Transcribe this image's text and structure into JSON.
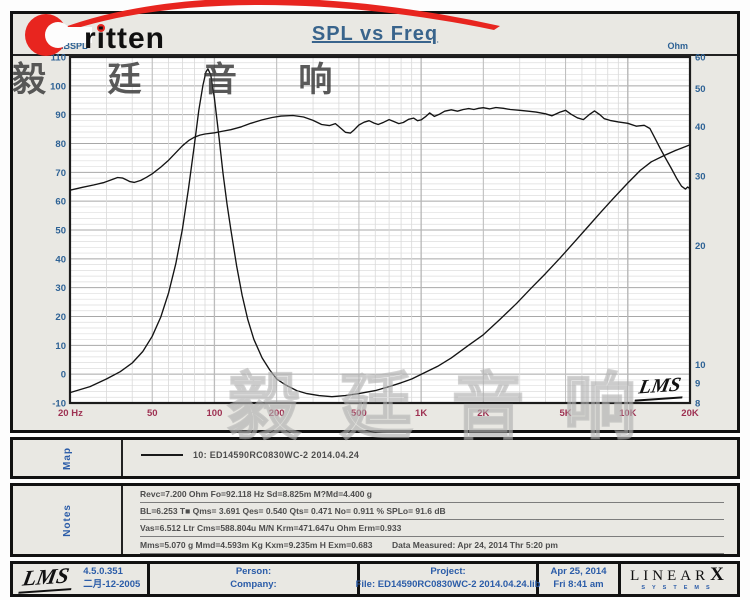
{
  "title": "SPL vs Freq",
  "logo": {
    "brand_text": "ritten"
  },
  "watermarks": {
    "top": "毅 廷 音 响",
    "bottom": "毅 廷 音 响"
  },
  "chart_data": {
    "type": "line",
    "title": "SPL vs Freq",
    "x_axis": {
      "scale": "log",
      "min": 20,
      "max": 20000,
      "tick_labels": [
        "20 Hz",
        "50",
        "100",
        "200",
        "500",
        "1K",
        "2K",
        "5K",
        "10K",
        "20K"
      ],
      "tick_values": [
        20,
        50,
        100,
        200,
        500,
        1000,
        2000,
        5000,
        10000,
        20000
      ]
    },
    "y_left": {
      "label": "dBSPL",
      "min": -10,
      "max": 110,
      "tick_step": 10,
      "scale": "linear"
    },
    "y_right": {
      "label": "Ohm",
      "min": 8,
      "max": 60,
      "scale": "log",
      "ticks": [
        60,
        50,
        40,
        30,
        20,
        10,
        9,
        8
      ]
    },
    "grid": {
      "h_minor_step_db": 2,
      "log_v_minors": true
    },
    "inplot_logo": "LMS",
    "series": [
      {
        "name": "SPL",
        "axis": "left",
        "color": "#141414",
        "points": [
          [
            20,
            63.8
          ],
          [
            23,
            64.8
          ],
          [
            26,
            65.6
          ],
          [
            29,
            66.4
          ],
          [
            32,
            67.5
          ],
          [
            34,
            68.2
          ],
          [
            36,
            68
          ],
          [
            39,
            66.8
          ],
          [
            41,
            66.5
          ],
          [
            44,
            67.2
          ],
          [
            47,
            68.3
          ],
          [
            50,
            69.5
          ],
          [
            55,
            71.8
          ],
          [
            60,
            74.2
          ],
          [
            65,
            76.8
          ],
          [
            70,
            79.2
          ],
          [
            75,
            81
          ],
          [
            80,
            82.2
          ],
          [
            85,
            82.9
          ],
          [
            90,
            83.3
          ],
          [
            100,
            83.7
          ],
          [
            110,
            84.3
          ],
          [
            120,
            84.8
          ],
          [
            135,
            85.8
          ],
          [
            150,
            87
          ],
          [
            170,
            88.2
          ],
          [
            190,
            89
          ],
          [
            210,
            89.5
          ],
          [
            240,
            89.7
          ],
          [
            270,
            89.2
          ],
          [
            300,
            88
          ],
          [
            330,
            86.6
          ],
          [
            360,
            86.2
          ],
          [
            385,
            86.9
          ],
          [
            410,
            85.2
          ],
          [
            430,
            83.9
          ],
          [
            455,
            83.6
          ],
          [
            475,
            84.8
          ],
          [
            500,
            86.4
          ],
          [
            530,
            87.4
          ],
          [
            560,
            87.9
          ],
          [
            590,
            87.1
          ],
          [
            620,
            86.6
          ],
          [
            660,
            87.4
          ],
          [
            700,
            88.3
          ],
          [
            740,
            87.6
          ],
          [
            780,
            86.9
          ],
          [
            820,
            87.3
          ],
          [
            870,
            88.4
          ],
          [
            920,
            88.8
          ],
          [
            960,
            87.9
          ],
          [
            1000,
            88.2
          ],
          [
            1050,
            89.3
          ],
          [
            1100,
            90.6
          ],
          [
            1160,
            89.4
          ],
          [
            1230,
            90.2
          ],
          [
            1300,
            91.2
          ],
          [
            1400,
            91.7
          ],
          [
            1500,
            91.2
          ],
          [
            1600,
            91.8
          ],
          [
            1700,
            92.1
          ],
          [
            1800,
            91.8
          ],
          [
            1900,
            92.2
          ],
          [
            2000,
            92.4
          ],
          [
            2150,
            92
          ],
          [
            2300,
            92.5
          ],
          [
            2500,
            92.2
          ],
          [
            2700,
            91.8
          ],
          [
            3000,
            91.5
          ],
          [
            3300,
            91.2
          ],
          [
            3600,
            90.9
          ],
          [
            4000,
            90.3
          ],
          [
            4300,
            89.6
          ],
          [
            4700,
            90.9
          ],
          [
            5000,
            91.5
          ],
          [
            5300,
            90.2
          ],
          [
            5700,
            88.9
          ],
          [
            6100,
            88.3
          ],
          [
            6500,
            90
          ],
          [
            6900,
            91.3
          ],
          [
            7300,
            90.1
          ],
          [
            7700,
            88.6
          ],
          [
            8200,
            88
          ],
          [
            9000,
            87.5
          ],
          [
            10000,
            87
          ],
          [
            11000,
            86
          ],
          [
            12000,
            86.3
          ],
          [
            12800,
            85.2
          ],
          [
            13500,
            82
          ],
          [
            14300,
            78.5
          ],
          [
            15200,
            75
          ],
          [
            16200,
            71.5
          ],
          [
            17200,
            68
          ],
          [
            18200,
            65.2
          ],
          [
            19000,
            64.2
          ],
          [
            19500,
            64.9
          ],
          [
            20000,
            64.3
          ]
        ]
      },
      {
        "name": "Impedance",
        "axis": "right",
        "color": "#141414",
        "points": [
          [
            20,
            8.5
          ],
          [
            25,
            8.8
          ],
          [
            30,
            9.2
          ],
          [
            35,
            9.6
          ],
          [
            40,
            10.1
          ],
          [
            45,
            10.8
          ],
          [
            50,
            11.8
          ],
          [
            55,
            13.2
          ],
          [
            60,
            15.2
          ],
          [
            65,
            18
          ],
          [
            70,
            22
          ],
          [
            75,
            28
          ],
          [
            80,
            36
          ],
          [
            84,
            44
          ],
          [
            88,
            51
          ],
          [
            91,
            55
          ],
          [
            93,
            56
          ],
          [
            96,
            54
          ],
          [
            100,
            47
          ],
          [
            105,
            38
          ],
          [
            110,
            30.5
          ],
          [
            115,
            25.5
          ],
          [
            120,
            22
          ],
          [
            128,
            17.8
          ],
          [
            136,
            15
          ],
          [
            145,
            13
          ],
          [
            155,
            11.6
          ],
          [
            170,
            10.4
          ],
          [
            185,
            9.7
          ],
          [
            200,
            9.2
          ],
          [
            220,
            8.9
          ],
          [
            250,
            8.6
          ],
          [
            280,
            8.45
          ],
          [
            320,
            8.35
          ],
          [
            370,
            8.3
          ],
          [
            430,
            8.35
          ],
          [
            500,
            8.45
          ],
          [
            600,
            8.6
          ],
          [
            700,
            8.8
          ],
          [
            800,
            9
          ],
          [
            900,
            9.2
          ],
          [
            1000,
            9.45
          ],
          [
            1200,
            9.9
          ],
          [
            1400,
            10.4
          ],
          [
            1700,
            11.2
          ],
          [
            2000,
            11.9
          ],
          [
            2400,
            13
          ],
          [
            2900,
            14.3
          ],
          [
            3400,
            15.6
          ],
          [
            4000,
            17
          ],
          [
            4700,
            18.6
          ],
          [
            5500,
            20.4
          ],
          [
            6400,
            22.3
          ],
          [
            7400,
            24.3
          ],
          [
            8500,
            26.3
          ],
          [
            10000,
            28.8
          ],
          [
            11500,
            31
          ],
          [
            13000,
            32.6
          ],
          [
            15000,
            33.8
          ],
          [
            17000,
            34.8
          ],
          [
            19000,
            35.6
          ],
          [
            20000,
            36
          ]
        ]
      }
    ]
  },
  "map": {
    "label": "Map",
    "legend": "10: ED14590RC0830WC-2   2014.04.24"
  },
  "notes": {
    "label": "Notes",
    "rows_left": [
      "Revc=7.200 Ohm  Fo=92.118 Hz  Sd=8.825m M?Md=4.400 g",
      "BL=6.253 T■  Qms= 3.691  Qes= 0.540  Qts= 0.471  No= 0.911 %  SPLo= 91.6 dB",
      "Vas=6.512 Ltr  Cms=588.804u M/N  Krm=471.647u Ohm  Erm=0.933",
      "Mms=5.070 g  Mmd=4.593m Kg  Kxm=9.235m H  Exm=0.683"
    ],
    "rows_right": [
      "",
      "",
      "",
      "Data Measured: Apr 24, 2014  Thr  5:20 pm"
    ]
  },
  "footer": {
    "lms_logo": "LMS",
    "version": "4.5.0.351",
    "version_date": "二月-12-2005",
    "person_label": "Person:",
    "company_label": "Company:",
    "project_label": "Project:",
    "file_label": "File: ED14590RC0830WC-2 2014.04.24.lib",
    "date": "Apr 25, 2014",
    "time": "Fri  8:41 am",
    "linearx": {
      "main": "LINEAR",
      "x": "X",
      "sub": "SYSTEMS"
    }
  },
  "colors": {
    "panel_bg": "#e9e8e3",
    "plot_bg": "#ffffff",
    "title": "#39648c",
    "y_tick": "#2e6295",
    "x_tick": "#9e3152",
    "footer_text": "#2b5ca8",
    "curve": "#141414",
    "brand_red": "#e8251f"
  }
}
